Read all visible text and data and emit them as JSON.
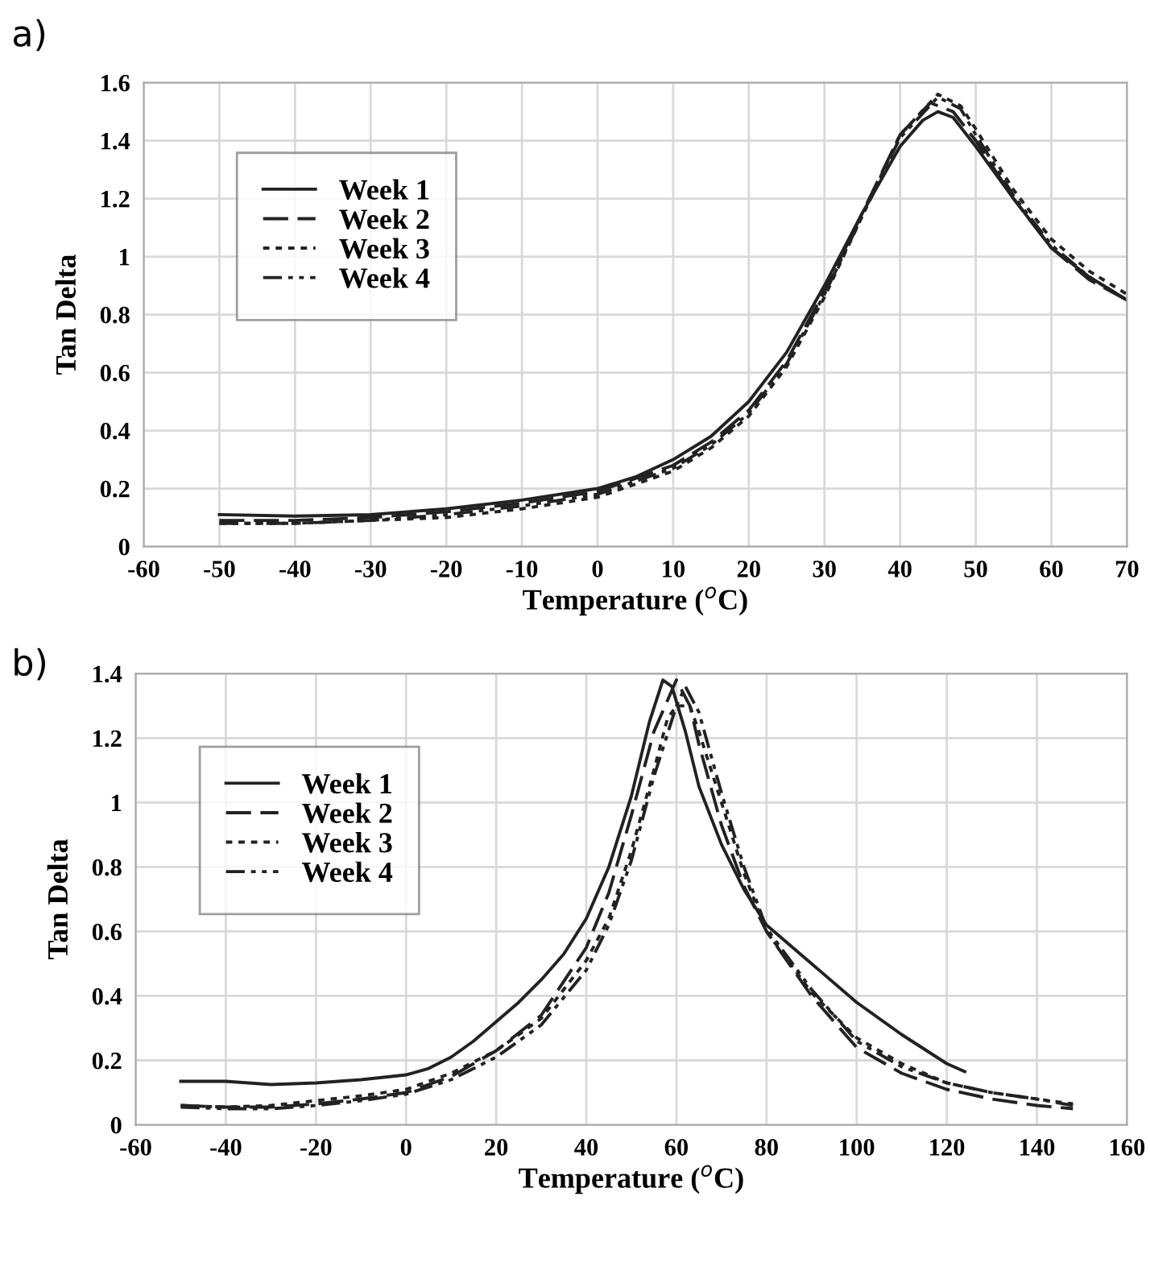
{
  "chart_data": [
    {
      "type": "line",
      "xlabel": "Temperature ($^{o}$C)",
      "ylabel": "Tan Delta",
      "annotations": [
        "a)"
      ],
      "xlim": [
        -60,
        70
      ],
      "xticks": [
        -60,
        -50,
        -40,
        -30,
        -20,
        -10,
        0,
        10,
        20,
        30,
        40,
        50,
        60,
        70
      ],
      "ylim": [
        0,
        1.6
      ],
      "yticks": [
        0,
        0.2,
        0.4,
        0.6,
        0.8,
        1,
        1.2,
        1.4,
        1.6
      ],
      "grid": true,
      "legend": "top left",
      "marker": "none",
      "series": [
        {
          "name": "Week 1",
          "color": "#222222",
          "line_style": "solid",
          "x": [
            -50,
            -40,
            -30,
            -20,
            -10,
            0,
            5,
            10,
            15,
            20,
            25,
            30,
            35,
            40,
            43,
            45,
            47,
            50,
            55,
            60,
            65,
            70
          ],
          "values": [
            0.11,
            0.105,
            0.11,
            0.13,
            0.16,
            0.2,
            0.24,
            0.3,
            0.38,
            0.5,
            0.67,
            0.9,
            1.15,
            1.38,
            1.47,
            1.5,
            1.48,
            1.38,
            1.2,
            1.03,
            0.93,
            0.85
          ]
        },
        {
          "name": "Week 2",
          "color": "#222222",
          "line_style": "dashed",
          "x": [
            -50,
            -40,
            -30,
            -20,
            -10,
            0,
            10,
            15,
            20,
            25,
            30,
            35,
            40,
            44,
            47,
            50,
            55,
            60,
            65,
            70
          ],
          "values": [
            0.09,
            0.09,
            0.1,
            0.12,
            0.15,
            0.19,
            0.28,
            0.36,
            0.47,
            0.64,
            0.88,
            1.15,
            1.42,
            1.53,
            1.5,
            1.4,
            1.2,
            1.03,
            0.92,
            0.85
          ]
        },
        {
          "name": "Week 3",
          "color": "#222222",
          "line_style": "dotted",
          "x": [
            -50,
            -40,
            -30,
            -20,
            -10,
            0,
            10,
            15,
            20,
            25,
            30,
            35,
            40,
            45,
            48,
            50,
            55,
            60,
            65,
            70
          ],
          "values": [
            0.08,
            0.08,
            0.09,
            0.1,
            0.13,
            0.17,
            0.26,
            0.34,
            0.45,
            0.62,
            0.86,
            1.14,
            1.42,
            1.56,
            1.52,
            1.44,
            1.23,
            1.06,
            0.95,
            0.87
          ]
        },
        {
          "name": "Week 4",
          "color": "#222222",
          "line_style": "dashdot",
          "x": [
            -50,
            -40,
            -30,
            -20,
            -10,
            0,
            10,
            15,
            20,
            25,
            30,
            35,
            40,
            45,
            48,
            50,
            55,
            60,
            65,
            70
          ],
          "values": [
            0.08,
            0.08,
            0.09,
            0.11,
            0.14,
            0.18,
            0.27,
            0.35,
            0.46,
            0.63,
            0.87,
            1.14,
            1.41,
            1.55,
            1.51,
            1.42,
            1.21,
            1.04,
            0.93,
            0.85
          ]
        }
      ]
    },
    {
      "type": "line",
      "xlabel": "Temperature ($^{o}$C)",
      "ylabel": "Tan Delta",
      "annotations": [
        "b)"
      ],
      "xlim": [
        -60,
        160
      ],
      "xticks": [
        -60,
        -40,
        -20,
        0,
        20,
        40,
        60,
        80,
        100,
        120,
        140,
        160
      ],
      "ylim": [
        0,
        1.4
      ],
      "yticks": [
        0,
        0.2,
        0.4,
        0.6,
        0.8,
        1,
        1.2,
        1.4
      ],
      "grid": true,
      "legend": "top left",
      "marker": "none",
      "series": [
        {
          "name": "Week 1",
          "color": "#222222",
          "line_style": "solid",
          "x": [
            -50,
            -40,
            -30,
            -20,
            -10,
            0,
            5,
            10,
            15,
            20,
            25,
            30,
            35,
            40,
            45,
            50,
            54,
            57,
            59,
            62,
            65,
            70,
            75,
            80,
            90,
            100,
            110,
            120,
            124
          ],
          "values": [
            0.135,
            0.135,
            0.125,
            0.13,
            0.14,
            0.155,
            0.175,
            0.21,
            0.26,
            0.32,
            0.38,
            0.45,
            0.53,
            0.64,
            0.8,
            1.02,
            1.25,
            1.38,
            1.36,
            1.22,
            1.05,
            0.87,
            0.73,
            0.62,
            0.5,
            0.38,
            0.28,
            0.19,
            0.165
          ]
        },
        {
          "name": "Week 2",
          "color": "#222222",
          "line_style": "dashed",
          "x": [
            -50,
            -40,
            -30,
            -20,
            -10,
            0,
            10,
            20,
            30,
            40,
            45,
            50,
            55,
            60,
            63,
            65,
            70,
            75,
            80,
            90,
            100,
            110,
            120,
            130,
            140,
            148
          ],
          "values": [
            0.06,
            0.055,
            0.055,
            0.065,
            0.08,
            0.1,
            0.15,
            0.23,
            0.34,
            0.55,
            0.72,
            0.96,
            1.22,
            1.38,
            1.3,
            1.18,
            0.93,
            0.74,
            0.6,
            0.4,
            0.24,
            0.16,
            0.11,
            0.08,
            0.06,
            0.05
          ]
        },
        {
          "name": "Week 3",
          "color": "#222222",
          "line_style": "dotted",
          "x": [
            -50,
            -40,
            -30,
            -20,
            -10,
            0,
            10,
            20,
            30,
            40,
            45,
            50,
            55,
            58,
            60,
            63,
            65,
            70,
            75,
            80,
            90,
            100,
            110,
            120,
            130,
            140,
            148
          ],
          "values": [
            0.06,
            0.055,
            0.06,
            0.075,
            0.09,
            0.11,
            0.16,
            0.23,
            0.33,
            0.51,
            0.64,
            0.85,
            1.1,
            1.26,
            1.3,
            1.3,
            1.22,
            1.0,
            0.78,
            0.6,
            0.41,
            0.27,
            0.19,
            0.13,
            0.1,
            0.08,
            0.065
          ]
        },
        {
          "name": "Week 4",
          "color": "#222222",
          "line_style": "dashdot",
          "x": [
            -50,
            -40,
            -30,
            -20,
            -10,
            0,
            10,
            20,
            30,
            40,
            45,
            50,
            55,
            60,
            62,
            65,
            70,
            75,
            80,
            90,
            100,
            110,
            120,
            130,
            140,
            148
          ],
          "values": [
            0.055,
            0.05,
            0.05,
            0.06,
            0.075,
            0.095,
            0.14,
            0.21,
            0.31,
            0.48,
            0.62,
            0.82,
            1.08,
            1.3,
            1.36,
            1.28,
            1.03,
            0.8,
            0.61,
            0.42,
            0.26,
            0.18,
            0.13,
            0.1,
            0.08,
            0.06
          ]
        }
      ]
    }
  ]
}
